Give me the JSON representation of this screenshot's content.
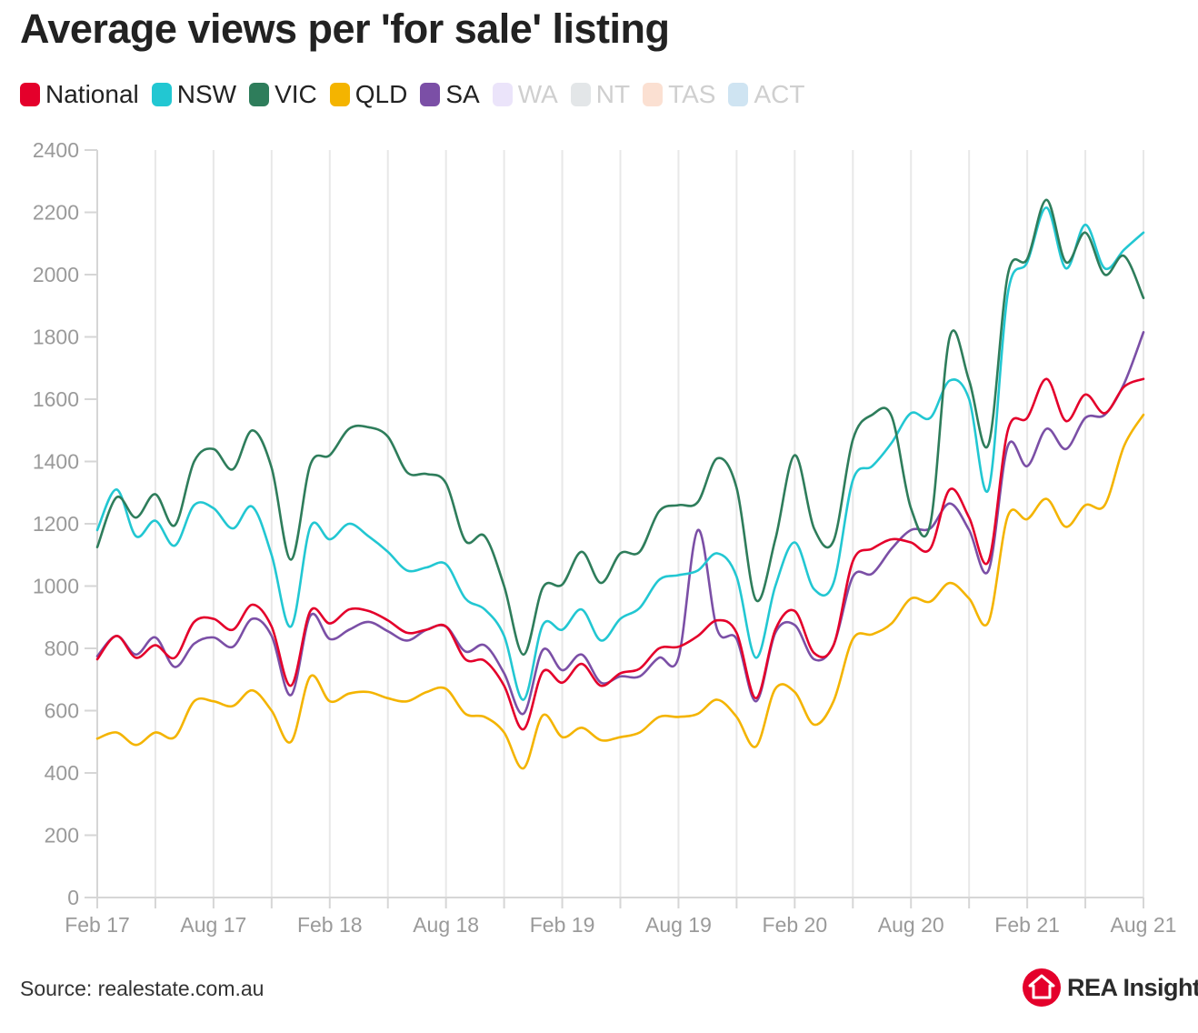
{
  "title": "Average views per 'for sale' listing",
  "source": "Source: realestate.com.au",
  "brand": {
    "name": "REA Insights",
    "color": "#e4002b"
  },
  "legend": [
    {
      "label": "National",
      "color": "#e4002b",
      "active": true
    },
    {
      "label": "NSW",
      "color": "#22c7d2",
      "active": true
    },
    {
      "label": "VIC",
      "color": "#2e7d5b",
      "active": true
    },
    {
      "label": "QLD",
      "color": "#f4b400",
      "active": true
    },
    {
      "label": "SA",
      "color": "#7b4fa6",
      "active": true
    },
    {
      "label": "WA",
      "color": "#ebe4fa",
      "active": false
    },
    {
      "label": "NT",
      "color": "#e3e6e8",
      "active": false
    },
    {
      "label": "TAS",
      "color": "#fbe0d2",
      "active": false
    },
    {
      "label": "ACT",
      "color": "#cfe4f2",
      "active": false
    }
  ],
  "chart_data": {
    "type": "line",
    "title": "Average views per 'for sale' listing",
    "xlabel": "",
    "ylabel": "",
    "ylim": [
      0,
      2400
    ],
    "yticks": [
      0,
      200,
      400,
      600,
      800,
      1000,
      1200,
      1400,
      1600,
      1800,
      2000,
      2200,
      2400
    ],
    "xtick_labels": [
      "Feb 17",
      "Aug 17",
      "Feb 18",
      "Aug 18",
      "Feb 19",
      "Aug 19",
      "Feb 20",
      "Aug 20",
      "Feb 21",
      "Aug 21"
    ],
    "x_start": "Feb 2017",
    "x_end": "Aug 2021",
    "x_unit": "month",
    "grid": "vertical",
    "series": [
      {
        "name": "National",
        "color": "#e4002b",
        "values": [
          765,
          840,
          770,
          810,
          770,
          885,
          895,
          860,
          940,
          870,
          680,
          920,
          880,
          925,
          920,
          890,
          850,
          860,
          870,
          765,
          760,
          680,
          540,
          725,
          690,
          750,
          680,
          720,
          735,
          800,
          805,
          840,
          890,
          850,
          640,
          860,
          920,
          785,
          810,
          1080,
          1120,
          1150,
          1140,
          1120,
          1310,
          1220,
          1080,
          1500,
          1540,
          1665,
          1530,
          1615,
          1555,
          1640,
          1665
        ]
      },
      {
        "name": "NSW",
        "color": "#22c7d2",
        "values": [
          1180,
          1310,
          1160,
          1210,
          1130,
          1260,
          1250,
          1185,
          1255,
          1100,
          870,
          1190,
          1150,
          1200,
          1160,
          1110,
          1050,
          1060,
          1070,
          960,
          925,
          840,
          635,
          875,
          860,
          925,
          825,
          895,
          930,
          1020,
          1035,
          1050,
          1105,
          1030,
          770,
          1000,
          1140,
          990,
          1010,
          1340,
          1385,
          1460,
          1555,
          1540,
          1660,
          1600,
          1310,
          1940,
          2040,
          2215,
          2020,
          2160,
          2020,
          2080,
          2135
        ]
      },
      {
        "name": "VIC",
        "color": "#2e7d5b",
        "values": [
          1125,
          1285,
          1220,
          1295,
          1195,
          1400,
          1440,
          1375,
          1500,
          1380,
          1085,
          1390,
          1420,
          1505,
          1510,
          1480,
          1365,
          1360,
          1330,
          1145,
          1160,
          1000,
          780,
          995,
          1005,
          1110,
          1010,
          1105,
          1110,
          1240,
          1260,
          1270,
          1410,
          1315,
          955,
          1150,
          1420,
          1185,
          1145,
          1470,
          1550,
          1545,
          1250,
          1200,
          1800,
          1660,
          1455,
          2000,
          2050,
          2240,
          2040,
          2135,
          2000,
          2060,
          1925
        ]
      },
      {
        "name": "QLD",
        "color": "#f4b400",
        "values": [
          510,
          530,
          490,
          530,
          515,
          630,
          630,
          615,
          665,
          600,
          500,
          710,
          630,
          655,
          660,
          640,
          630,
          660,
          670,
          590,
          580,
          530,
          415,
          585,
          515,
          545,
          505,
          515,
          530,
          580,
          580,
          590,
          635,
          580,
          485,
          670,
          660,
          555,
          630,
          830,
          845,
          880,
          960,
          950,
          1010,
          960,
          885,
          1225,
          1215,
          1280,
          1190,
          1260,
          1260,
          1450,
          1550
        ]
      },
      {
        "name": "SA",
        "color": "#7b4fa6",
        "values": [
          775,
          840,
          780,
          835,
          740,
          815,
          835,
          805,
          895,
          840,
          650,
          905,
          830,
          860,
          885,
          855,
          825,
          860,
          870,
          790,
          810,
          720,
          590,
          795,
          730,
          780,
          690,
          710,
          710,
          770,
          770,
          1180,
          860,
          830,
          630,
          850,
          875,
          765,
          810,
          1030,
          1040,
          1120,
          1180,
          1185,
          1265,
          1180,
          1050,
          1450,
          1385,
          1505,
          1440,
          1540,
          1550,
          1650,
          1815
        ]
      }
    ]
  }
}
